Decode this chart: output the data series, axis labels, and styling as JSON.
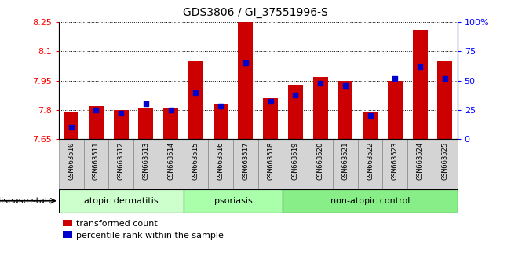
{
  "title": "GDS3806 / GI_37551996-S",
  "samples": [
    "GSM663510",
    "GSM663511",
    "GSM663512",
    "GSM663513",
    "GSM663514",
    "GSM663515",
    "GSM663516",
    "GSM663517",
    "GSM663518",
    "GSM663519",
    "GSM663520",
    "GSM663521",
    "GSM663522",
    "GSM663523",
    "GSM663524",
    "GSM663525"
  ],
  "transformed_count": [
    7.79,
    7.82,
    7.8,
    7.81,
    7.81,
    8.05,
    7.83,
    8.25,
    7.86,
    7.93,
    7.97,
    7.95,
    7.79,
    7.95,
    8.21,
    8.05
  ],
  "percentile_rank": [
    10,
    25,
    22,
    30,
    25,
    40,
    28,
    65,
    32,
    38,
    48,
    46,
    20,
    52,
    62,
    52
  ],
  "ylim_left": [
    7.65,
    8.25
  ],
  "ylim_right": [
    0,
    100
  ],
  "yticks_left": [
    7.65,
    7.8,
    7.95,
    8.1,
    8.25
  ],
  "yticks_right": [
    0,
    25,
    50,
    75,
    100
  ],
  "ytick_labels_left": [
    "7.65",
    "7.8",
    "7.95",
    "8.1",
    "8.25"
  ],
  "ytick_labels_right": [
    "0",
    "25",
    "50",
    "75",
    "100%"
  ],
  "bar_color": "#cc0000",
  "dot_color": "#0000cc",
  "bar_bottom": 7.65,
  "groups": [
    {
      "label": "atopic dermatitis",
      "start": 0,
      "end": 4
    },
    {
      "label": "psoriasis",
      "start": 5,
      "end": 8
    },
    {
      "label": "non-atopic control",
      "start": 9,
      "end": 15
    }
  ],
  "group_colors": [
    "#ccffcc",
    "#aaffaa",
    "#88ee88"
  ],
  "disease_state_label": "disease state",
  "legend_labels": [
    "transformed count",
    "percentile rank within the sample"
  ],
  "legend_colors": [
    "#cc0000",
    "#0000cc"
  ],
  "bar_width": 0.6,
  "tick_label_bg": "#d4d4d4"
}
